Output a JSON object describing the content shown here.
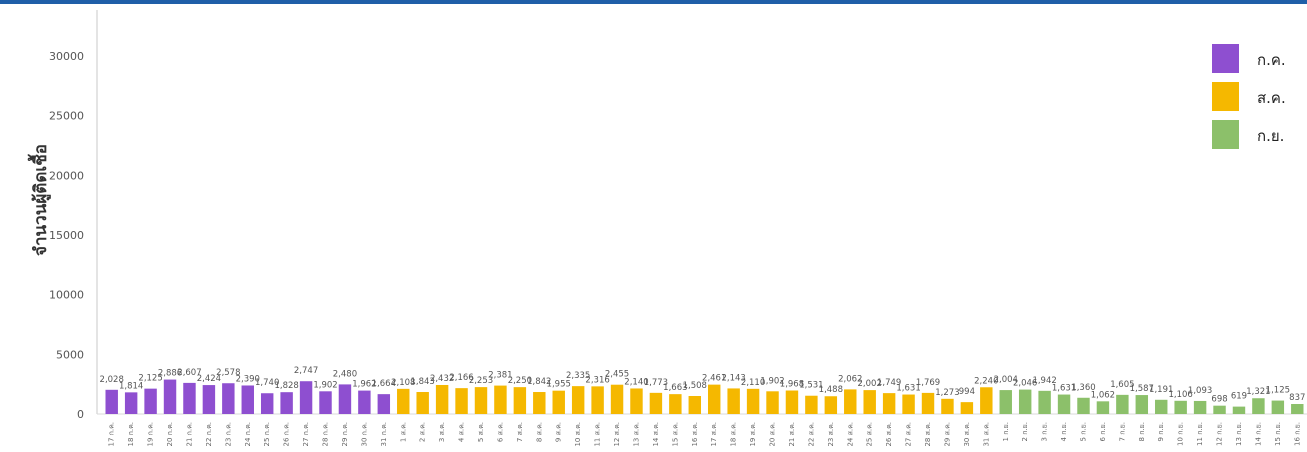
{
  "chart_data": {
    "type": "bar",
    "ylabel": "จำนวนผู้ติดเชื้อ",
    "ylim": [
      0,
      33000
    ],
    "yticks": [
      0,
      5000,
      10000,
      15000,
      20000,
      25000,
      30000
    ],
    "legend_position": "top-right",
    "series": [
      {
        "name": "ก.ค.",
        "color": "#8e4fd0",
        "categories": [
          "17 ก.ค.",
          "18 ก.ค.",
          "19 ก.ค.",
          "20 ก.ค.",
          "21 ก.ค.",
          "22 ก.ค.",
          "23 ก.ค.",
          "24 ก.ค.",
          "25 ก.ค.",
          "26 ก.ค.",
          "27 ก.ค.",
          "28 ก.ค.",
          "29 ก.ค.",
          "30 ก.ค.",
          "31 ก.ค."
        ],
        "values": [
          2028,
          1814,
          2125,
          2886,
          2607,
          2424,
          2578,
          2390,
          1740,
          1828,
          2747,
          1902,
          2480,
          1962,
          1664
        ],
        "labels": [
          "2,028",
          "1,814",
          "2,125",
          "2,886",
          "2,607",
          "2,424",
          "2,578",
          "2,390",
          "1,740",
          "1,828",
          "2,747",
          "1,902",
          "2,480",
          "1,962",
          "1,664"
        ]
      },
      {
        "name": "ส.ค.",
        "color": "#f5b800",
        "categories": [
          "1 ส.ค.",
          "2 ส.ค.",
          "3 ส.ค.",
          "4 ส.ค.",
          "5 ส.ค.",
          "6 ส.ค.",
          "7 ส.ค.",
          "8 ส.ค.",
          "9 ส.ค.",
          "10 ส.ค.",
          "11 ส.ค.",
          "12 ส.ค.",
          "13 ส.ค.",
          "14 ส.ค.",
          "15 ส.ค.",
          "16 ส.ค.",
          "17 ส.ค.",
          "18 ส.ค.",
          "19 ส.ค.",
          "20 ส.ค.",
          "21 ส.ค.",
          "22 ส.ค.",
          "23 ส.ค.",
          "24 ส.ค.",
          "25 ส.ค.",
          "26 ส.ค.",
          "27 ส.ค.",
          "28 ส.ค.",
          "29 ส.ค.",
          "30 ส.ค.",
          "31 ส.ค."
        ],
        "values": [
          2108,
          1843,
          2432,
          2166,
          2253,
          2381,
          2250,
          1842,
          1955,
          2335,
          2316,
          2455,
          2140,
          1773,
          1663,
          1508,
          2461,
          2143,
          2110,
          1902,
          1968,
          1531,
          1488,
          2062,
          2002,
          1749,
          1631,
          1769,
          1273,
          994,
          2240
        ],
        "labels": [
          "2,108",
          "1,843",
          "2,432",
          "2,166",
          "2,253",
          "2,381",
          "2,250",
          "1,842",
          "1,955",
          "2,335",
          "2,316",
          "2,455",
          "2,140",
          "1,773",
          "1,663",
          "1,508",
          "2,461",
          "2,143",
          "2,110",
          "1,902",
          "1,968",
          "1,531",
          "1,488",
          "2,062",
          "2,002",
          "1,749",
          "1,631",
          "1,769",
          "1,273",
          "994",
          "2,240"
        ]
      },
      {
        "name": "ก.ย.",
        "color": "#8cc06a",
        "categories": [
          "1 ก.ย.",
          "2 ก.ย.",
          "3 ก.ย.",
          "4 ก.ย.",
          "5 ก.ย.",
          "6 ก.ย.",
          "7 ก.ย.",
          "8 ก.ย.",
          "9 ก.ย.",
          "10 ก.ย.",
          "11 ก.ย.",
          "12 ก.ย.",
          "13 ก.ย.",
          "14 ก.ย.",
          "15 ก.ย.",
          "16 ก.ย."
        ],
        "values": [
          2004,
          2046,
          1942,
          1631,
          1360,
          1062,
          1605,
          1587,
          1191,
          1106,
          1093,
          698,
          619,
          1321,
          1125,
          837
        ],
        "labels": [
          "2,004",
          "2,046",
          "1,942",
          "1,631",
          "1,360",
          "1,062",
          "1,605",
          "1,587",
          "1,191",
          "1,106",
          "1,093",
          "698",
          "619",
          "1,321",
          "1,125",
          "837"
        ]
      }
    ]
  }
}
